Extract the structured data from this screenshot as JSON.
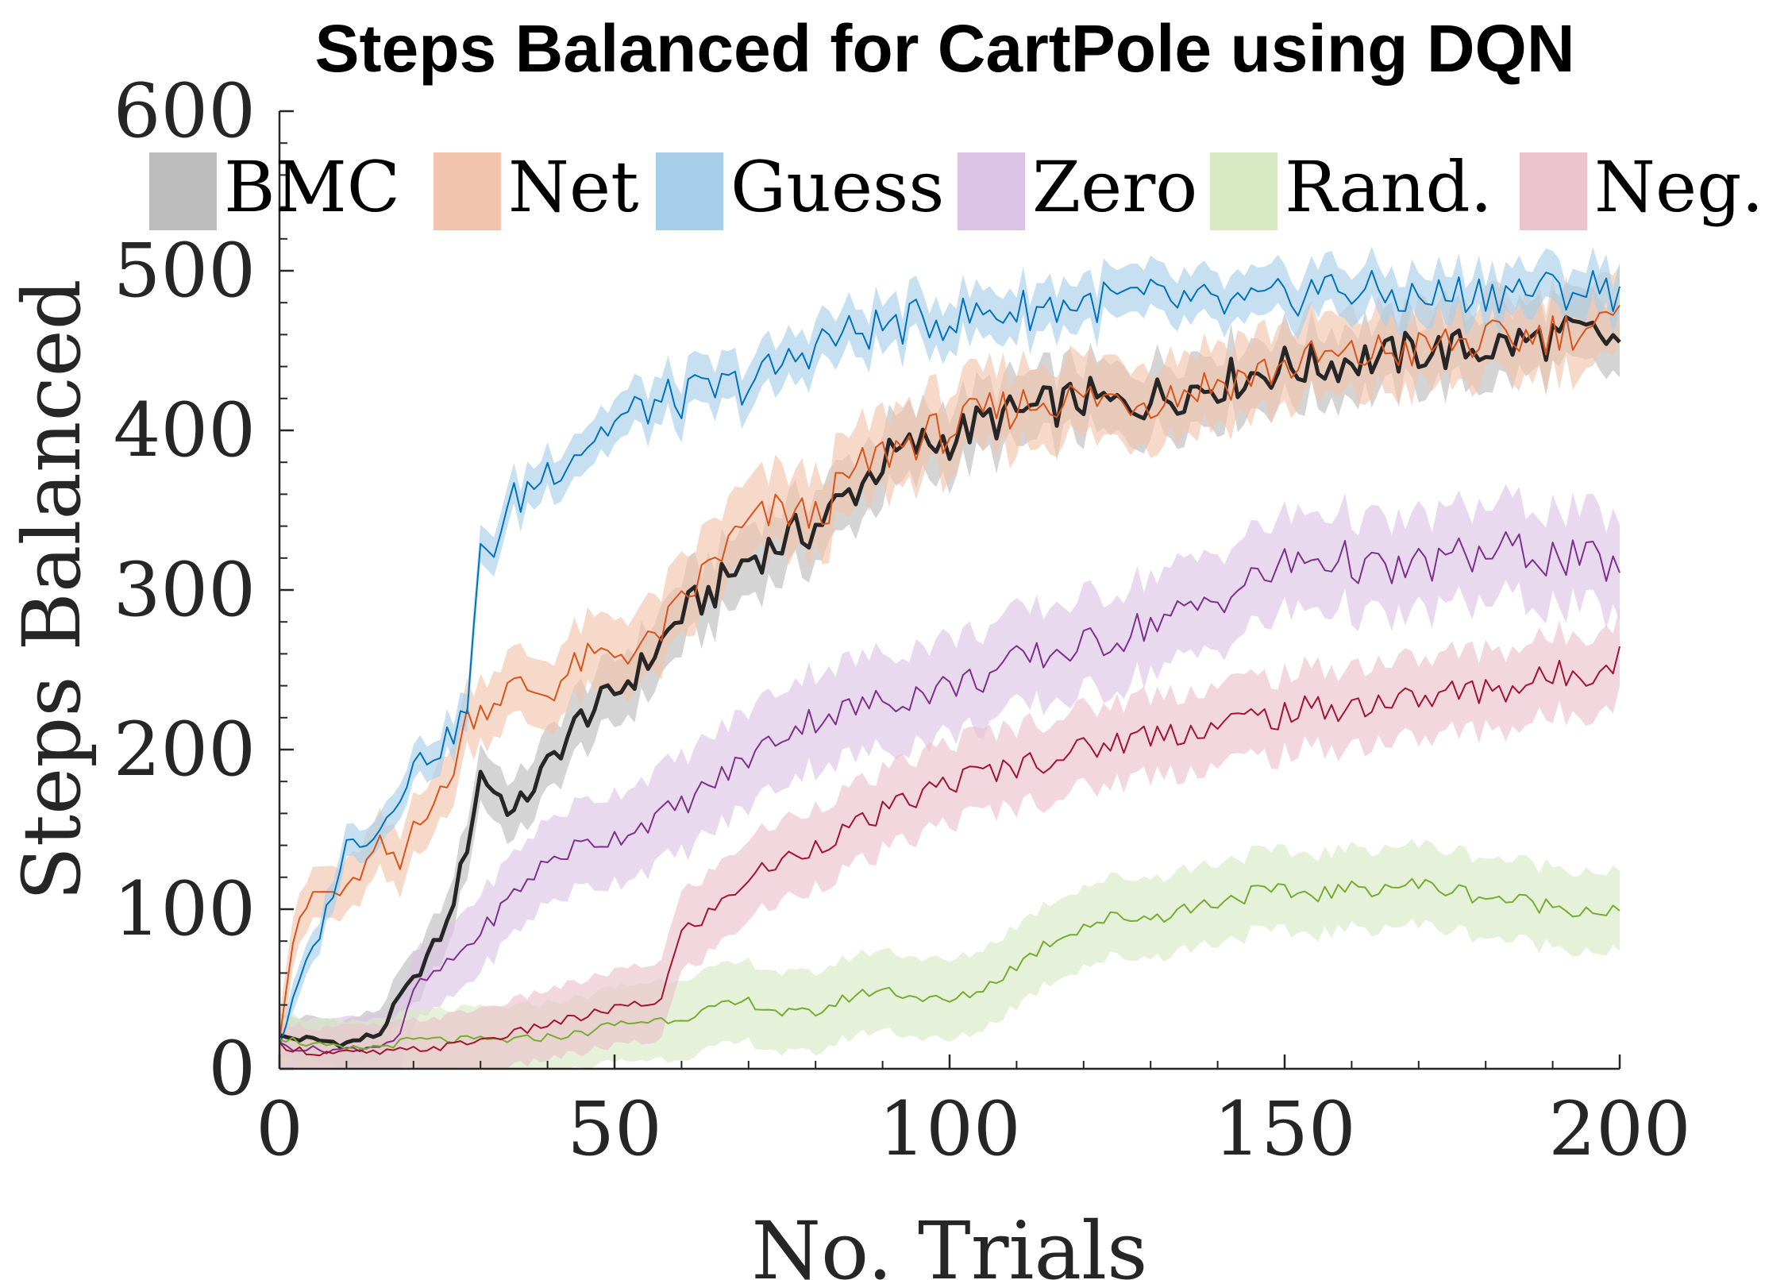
{
  "chart_data": {
    "type": "line",
    "title": "Steps Balanced for CartPole using DQN",
    "xlabel": "No. Trials",
    "ylabel": "Steps Balanced",
    "xlim": [
      0,
      200
    ],
    "ylim": [
      0,
      600
    ],
    "xticks": [
      "0",
      "50",
      "100",
      "150",
      "200"
    ],
    "yticks": [
      "0",
      "100",
      "200",
      "300",
      "400",
      "500",
      "600"
    ],
    "grid": false,
    "legend_position": "top",
    "series": [
      {
        "name": "BMC",
        "color": "#262626",
        "band_color": "#bdbdbd",
        "points": [
          [
            0,
            20
          ],
          [
            5,
            18
          ],
          [
            10,
            16
          ],
          [
            15,
            22
          ],
          [
            18,
            45
          ],
          [
            20,
            55
          ],
          [
            22,
            70
          ],
          [
            25,
            90
          ],
          [
            28,
            140
          ],
          [
            30,
            185
          ],
          [
            32,
            175
          ],
          [
            35,
            160
          ],
          [
            40,
            190
          ],
          [
            45,
            220
          ],
          [
            50,
            235
          ],
          [
            55,
            255
          ],
          [
            60,
            285
          ],
          [
            65,
            300
          ],
          [
            70,
            320
          ],
          [
            75,
            330
          ],
          [
            80,
            340
          ],
          [
            85,
            360
          ],
          [
            90,
            380
          ],
          [
            95,
            390
          ],
          [
            100,
            395
          ],
          [
            105,
            405
          ],
          [
            110,
            410
          ],
          [
            115,
            415
          ],
          [
            120,
            420
          ],
          [
            125,
            415
          ],
          [
            130,
            420
          ],
          [
            135,
            425
          ],
          [
            140,
            430
          ],
          [
            145,
            435
          ],
          [
            150,
            440
          ],
          [
            155,
            440
          ],
          [
            160,
            445
          ],
          [
            165,
            445
          ],
          [
            170,
            450
          ],
          [
            175,
            450
          ],
          [
            180,
            452
          ],
          [
            185,
            455
          ],
          [
            190,
            458
          ],
          [
            195,
            460
          ],
          [
            200,
            455
          ]
        ],
        "band": 22
      },
      {
        "name": "Net",
        "color": "#d95319",
        "band_color": "#f2c4ad",
        "points": [
          [
            0,
            20
          ],
          [
            2,
            80
          ],
          [
            5,
            110
          ],
          [
            10,
            110
          ],
          [
            15,
            140
          ],
          [
            18,
            125
          ],
          [
            20,
            155
          ],
          [
            25,
            175
          ],
          [
            28,
            220
          ],
          [
            30,
            225
          ],
          [
            35,
            240
          ],
          [
            40,
            235
          ],
          [
            45,
            255
          ],
          [
            50,
            260
          ],
          [
            55,
            265
          ],
          [
            60,
            290
          ],
          [
            65,
            320
          ],
          [
            70,
            340
          ],
          [
            75,
            350
          ],
          [
            80,
            345
          ],
          [
            85,
            370
          ],
          [
            90,
            385
          ],
          [
            95,
            395
          ],
          [
            100,
            400
          ],
          [
            105,
            410
          ],
          [
            110,
            415
          ],
          [
            115,
            420
          ],
          [
            120,
            420
          ],
          [
            125,
            420
          ],
          [
            130,
            420
          ],
          [
            135,
            425
          ],
          [
            140,
            430
          ],
          [
            145,
            435
          ],
          [
            150,
            440
          ],
          [
            155,
            445
          ],
          [
            160,
            445
          ],
          [
            165,
            450
          ],
          [
            170,
            450
          ],
          [
            175,
            455
          ],
          [
            180,
            455
          ],
          [
            185,
            458
          ],
          [
            190,
            462
          ],
          [
            195,
            465
          ],
          [
            200,
            465
          ]
        ],
        "band": 25
      },
      {
        "name": "Guess",
        "color": "#0072bd",
        "band_color": "#a8cfea",
        "points": [
          [
            0,
            15
          ],
          [
            3,
            55
          ],
          [
            6,
            85
          ],
          [
            10,
            140
          ],
          [
            15,
            150
          ],
          [
            18,
            175
          ],
          [
            20,
            190
          ],
          [
            25,
            205
          ],
          [
            28,
            225
          ],
          [
            30,
            320
          ],
          [
            32,
            330
          ],
          [
            35,
            355
          ],
          [
            40,
            375
          ],
          [
            45,
            390
          ],
          [
            50,
            405
          ],
          [
            55,
            415
          ],
          [
            60,
            420
          ],
          [
            65,
            425
          ],
          [
            70,
            430
          ],
          [
            75,
            440
          ],
          [
            80,
            455
          ],
          [
            85,
            460
          ],
          [
            90,
            465
          ],
          [
            95,
            468
          ],
          [
            100,
            470
          ],
          [
            105,
            473
          ],
          [
            110,
            475
          ],
          [
            115,
            478
          ],
          [
            120,
            480
          ],
          [
            125,
            482
          ],
          [
            130,
            482
          ],
          [
            135,
            480
          ],
          [
            140,
            478
          ],
          [
            145,
            478
          ],
          [
            150,
            482
          ],
          [
            155,
            490
          ],
          [
            160,
            488
          ],
          [
            165,
            485
          ],
          [
            170,
            482
          ],
          [
            175,
            485
          ],
          [
            180,
            487
          ],
          [
            185,
            488
          ],
          [
            190,
            488
          ],
          [
            195,
            489
          ],
          [
            200,
            488
          ]
        ],
        "band": 15
      },
      {
        "name": "Zero",
        "color": "#7e2f8e",
        "band_color": "#dcc4e6",
        "points": [
          [
            0,
            15
          ],
          [
            5,
            12
          ],
          [
            10,
            12
          ],
          [
            15,
            15
          ],
          [
            18,
            20
          ],
          [
            20,
            50
          ],
          [
            25,
            65
          ],
          [
            30,
            85
          ],
          [
            35,
            110
          ],
          [
            40,
            130
          ],
          [
            45,
            140
          ],
          [
            50,
            145
          ],
          [
            55,
            155
          ],
          [
            60,
            165
          ],
          [
            65,
            180
          ],
          [
            70,
            195
          ],
          [
            75,
            210
          ],
          [
            80,
            220
          ],
          [
            85,
            225
          ],
          [
            90,
            230
          ],
          [
            95,
            235
          ],
          [
            100,
            240
          ],
          [
            105,
            245
          ],
          [
            110,
            255
          ],
          [
            115,
            260
          ],
          [
            120,
            265
          ],
          [
            125,
            270
          ],
          [
            130,
            280
          ],
          [
            135,
            285
          ],
          [
            140,
            295
          ],
          [
            145,
            305
          ],
          [
            150,
            315
          ],
          [
            155,
            320
          ],
          [
            160,
            318
          ],
          [
            165,
            310
          ],
          [
            170,
            315
          ],
          [
            175,
            320
          ],
          [
            180,
            322
          ],
          [
            185,
            325
          ],
          [
            190,
            320
          ],
          [
            195,
            318
          ],
          [
            200,
            315
          ]
        ],
        "band": 30
      },
      {
        "name": "Rand.",
        "color": "#77ac30",
        "band_color": "#d7eac4",
        "points": [
          [
            0,
            20
          ],
          [
            5,
            15
          ],
          [
            10,
            12
          ],
          [
            15,
            14
          ],
          [
            20,
            18
          ],
          [
            25,
            18
          ],
          [
            30,
            18
          ],
          [
            35,
            18
          ],
          [
            40,
            20
          ],
          [
            45,
            22
          ],
          [
            50,
            28
          ],
          [
            55,
            30
          ],
          [
            60,
            32
          ],
          [
            65,
            38
          ],
          [
            70,
            42
          ],
          [
            75,
            35
          ],
          [
            80,
            35
          ],
          [
            85,
            45
          ],
          [
            90,
            50
          ],
          [
            95,
            45
          ],
          [
            100,
            42
          ],
          [
            105,
            50
          ],
          [
            110,
            65
          ],
          [
            115,
            80
          ],
          [
            120,
            90
          ],
          [
            125,
            95
          ],
          [
            130,
            95
          ],
          [
            135,
            100
          ],
          [
            140,
            105
          ],
          [
            145,
            110
          ],
          [
            150,
            110
          ],
          [
            155,
            110
          ],
          [
            160,
            112
          ],
          [
            165,
            115
          ],
          [
            170,
            115
          ],
          [
            175,
            112
          ],
          [
            180,
            108
          ],
          [
            185,
            105
          ],
          [
            190,
            102
          ],
          [
            195,
            100
          ],
          [
            200,
            98
          ]
        ],
        "band": 25
      },
      {
        "name": "Neg.",
        "color": "#a2142f",
        "band_color": "#ebc3cc",
        "points": [
          [
            0,
            15
          ],
          [
            5,
            10
          ],
          [
            10,
            10
          ],
          [
            15,
            10
          ],
          [
            20,
            12
          ],
          [
            25,
            14
          ],
          [
            30,
            18
          ],
          [
            35,
            22
          ],
          [
            40,
            28
          ],
          [
            45,
            32
          ],
          [
            50,
            38
          ],
          [
            55,
            40
          ],
          [
            57,
            45
          ],
          [
            60,
            85
          ],
          [
            65,
            100
          ],
          [
            70,
            120
          ],
          [
            75,
            130
          ],
          [
            80,
            140
          ],
          [
            85,
            150
          ],
          [
            90,
            160
          ],
          [
            95,
            170
          ],
          [
            100,
            180
          ],
          [
            105,
            185
          ],
          [
            110,
            190
          ],
          [
            115,
            195
          ],
          [
            120,
            200
          ],
          [
            125,
            205
          ],
          [
            130,
            210
          ],
          [
            135,
            212
          ],
          [
            140,
            215
          ],
          [
            145,
            220
          ],
          [
            150,
            222
          ],
          [
            155,
            225
          ],
          [
            160,
            228
          ],
          [
            165,
            230
          ],
          [
            170,
            232
          ],
          [
            175,
            235
          ],
          [
            180,
            238
          ],
          [
            185,
            240
          ],
          [
            190,
            245
          ],
          [
            195,
            250
          ],
          [
            200,
            258
          ]
        ],
        "band": 25
      }
    ]
  }
}
